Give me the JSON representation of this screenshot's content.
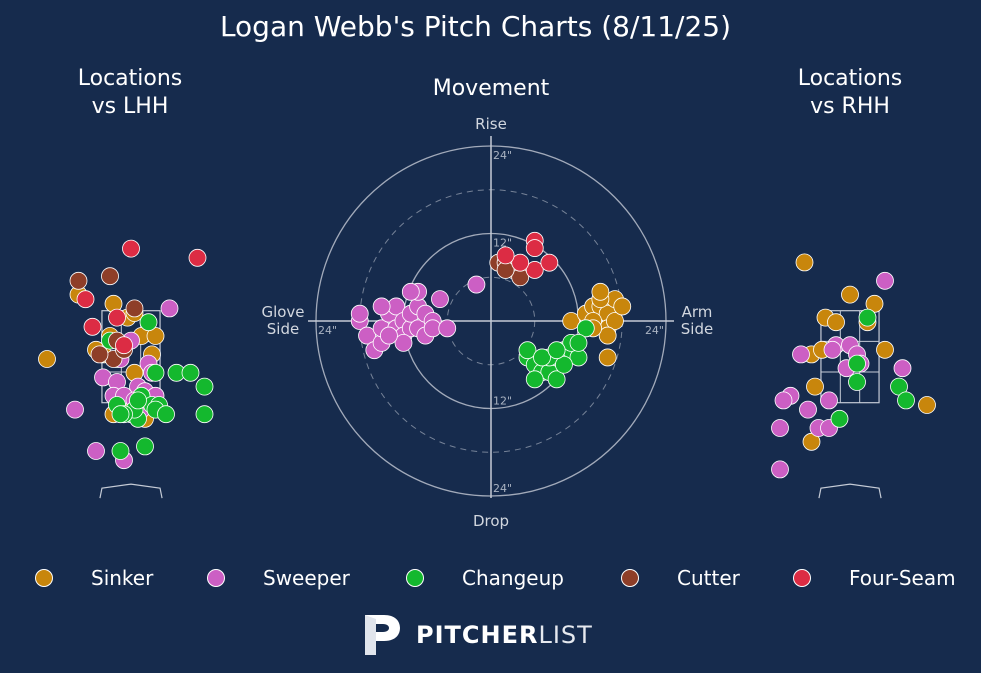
{
  "title": "Logan Webb's Pitch Charts (8/11/25)",
  "colors": {
    "background": "#162b4d",
    "Sinker": "#c8860c",
    "Sweeper": "#cc5fc4",
    "Changeup": "#14b82e",
    "Cutter": "#8e3e28",
    "Four-Seam": "#dc2c44",
    "grid": "#c5cbd6"
  },
  "legend": [
    {
      "name": "Sinker",
      "color": "#c8860c"
    },
    {
      "name": "Sweeper",
      "color": "#cc5fc4"
    },
    {
      "name": "Changeup",
      "color": "#14b82e"
    },
    {
      "name": "Cutter",
      "color": "#8e3e28"
    },
    {
      "name": "Four-Seam",
      "color": "#dc2c44"
    }
  ],
  "logo": {
    "bold": "PITCHER",
    "light": "LIST"
  },
  "chart_data": [
    {
      "type": "scatter",
      "title": "Locations\nvs LHH",
      "title_lines": [
        "Locations",
        "vs LHH"
      ],
      "xlim": [
        -2.3,
        2.3
      ],
      "ylim": [
        -0.5,
        5.3
      ],
      "series": [
        {
          "name": "Sinker",
          "points": [
            [
              -1.5,
              3.9
            ],
            [
              -0.5,
              3.7
            ],
            [
              -0.1,
              3.4
            ],
            [
              0.1,
              3.5
            ],
            [
              -0.6,
              3.0
            ],
            [
              0.3,
              3.0
            ],
            [
              0.7,
              3.0
            ],
            [
              -1.0,
              2.7
            ],
            [
              -0.8,
              2.6
            ],
            [
              -0.4,
              2.5
            ],
            [
              0.1,
              2.2
            ],
            [
              0.6,
              2.6
            ],
            [
              -0.2,
              1.6
            ],
            [
              -0.5,
              1.3
            ],
            [
              0.4,
              1.2
            ],
            [
              -2.4,
              2.5
            ]
          ]
        },
        {
          "name": "Sweeper",
          "points": [
            [
              1.1,
              3.6
            ],
            [
              0.0,
              2.9
            ],
            [
              -0.3,
              2.5
            ],
            [
              0.5,
              2.4
            ],
            [
              -0.8,
              2.1
            ],
            [
              -0.4,
              2.0
            ],
            [
              0.2,
              1.9
            ],
            [
              0.6,
              2.2
            ],
            [
              -0.5,
              1.7
            ],
            [
              -0.2,
              1.7
            ],
            [
              0.1,
              1.6
            ],
            [
              0.4,
              1.8
            ],
            [
              0.7,
              1.7
            ],
            [
              0.3,
              1.4
            ],
            [
              -1.6,
              1.4
            ],
            [
              -1.0,
              0.5
            ],
            [
              -0.2,
              0.3
            ]
          ]
        },
        {
          "name": "Changeup",
          "points": [
            [
              -0.6,
              2.9
            ],
            [
              0.5,
              3.3
            ],
            [
              0.7,
              2.2
            ],
            [
              1.3,
              2.2
            ],
            [
              1.7,
              2.2
            ],
            [
              2.1,
              1.9
            ],
            [
              0.3,
              1.7
            ],
            [
              0.6,
              1.5
            ],
            [
              0.8,
              1.5
            ],
            [
              -0.4,
              1.5
            ],
            [
              0.0,
              1.3
            ],
            [
              0.2,
              1.2
            ],
            [
              0.1,
              1.4
            ],
            [
              0.2,
              1.6
            ],
            [
              0.7,
              1.4
            ],
            [
              1.0,
              1.3
            ],
            [
              -0.2,
              1.3
            ],
            [
              -0.3,
              1.3
            ],
            [
              2.1,
              1.3
            ],
            [
              0.4,
              0.6
            ],
            [
              -0.3,
              0.5
            ]
          ]
        },
        {
          "name": "Cutter",
          "points": [
            [
              -1.5,
              4.2
            ],
            [
              -0.6,
              4.3
            ],
            [
              0.1,
              3.6
            ],
            [
              -0.4,
              2.9
            ],
            [
              -0.5,
              2.5
            ],
            [
              -0.9,
              2.6
            ],
            [
              -0.2,
              2.7
            ]
          ]
        },
        {
          "name": "Four-Seam",
          "points": [
            [
              0.0,
              4.9
            ],
            [
              1.9,
              4.7
            ],
            [
              -1.3,
              3.8
            ],
            [
              -0.4,
              3.4
            ],
            [
              -1.1,
              3.2
            ],
            [
              -0.2,
              2.8
            ]
          ]
        }
      ]
    },
    {
      "type": "scatter",
      "title": "Movement",
      "xlabel_left": "Glove\nSide",
      "xlabel_left_lines": [
        "Glove",
        "Side"
      ],
      "xlabel_right": "Arm\nSide",
      "xlabel_right_lines": [
        "Arm",
        "Side"
      ],
      "ylabel_top": "Rise",
      "ylabel_bottom": "Drop",
      "ring_labels": [
        "12\"",
        "24\""
      ],
      "rings": [
        6,
        12,
        18,
        24
      ],
      "xlim": [
        -24,
        24
      ],
      "ylim": [
        -24,
        24
      ],
      "series": [
        {
          "name": "Sinker",
          "points": [
            [
              11,
              0
            ],
            [
              13,
              1
            ],
            [
              14,
              2
            ],
            [
              15,
              2
            ],
            [
              16,
              1
            ],
            [
              17,
              3
            ],
            [
              15,
              3
            ],
            [
              16,
              -1
            ],
            [
              14,
              0
            ],
            [
              13,
              -1
            ],
            [
              17,
              0
            ],
            [
              18,
              2
            ],
            [
              15,
              4
            ],
            [
              16,
              -2
            ],
            [
              14,
              -1
            ],
            [
              16,
              -5
            ]
          ]
        },
        {
          "name": "Sweeper",
          "points": [
            [
              -18,
              0
            ],
            [
              -18,
              1
            ],
            [
              -17,
              -2
            ],
            [
              -16,
              -4
            ],
            [
              -15,
              -3
            ],
            [
              -15,
              -1
            ],
            [
              -14,
              1
            ],
            [
              -13,
              2
            ],
            [
              -13,
              -1
            ],
            [
              -12,
              0
            ],
            [
              -12,
              -2
            ],
            [
              -11,
              -1
            ],
            [
              -11,
              1
            ],
            [
              -10,
              2
            ],
            [
              -10,
              4
            ],
            [
              -10,
              -1
            ],
            [
              -9,
              -2
            ],
            [
              -9,
              1
            ],
            [
              -8,
              0
            ],
            [
              -8,
              -1
            ],
            [
              -7,
              3
            ],
            [
              -6,
              -1
            ],
            [
              -12,
              -3
            ],
            [
              -11,
              4
            ],
            [
              -15,
              2
            ],
            [
              -14,
              -2
            ],
            [
              -2,
              5
            ]
          ]
        },
        {
          "name": "Changeup",
          "points": [
            [
              5,
              -5
            ],
            [
              6,
              -6
            ],
            [
              7,
              -7
            ],
            [
              8,
              -7
            ],
            [
              9,
              -5
            ],
            [
              10,
              -4
            ],
            [
              11,
              -4
            ],
            [
              12,
              -5
            ],
            [
              13,
              -1
            ],
            [
              8,
              -5
            ],
            [
              9,
              -8
            ],
            [
              6,
              -8
            ],
            [
              5,
              -4
            ],
            [
              7,
              -5
            ],
            [
              10,
              -6
            ],
            [
              11,
              -3
            ],
            [
              12,
              -3
            ],
            [
              9,
              -4
            ]
          ]
        },
        {
          "name": "Cutter",
          "points": [
            [
              1,
              8
            ],
            [
              2,
              8
            ],
            [
              3,
              7
            ],
            [
              4,
              7
            ],
            [
              4,
              6
            ],
            [
              2,
              7
            ]
          ]
        },
        {
          "name": "Four-Seam",
          "points": [
            [
              6,
              11
            ],
            [
              6,
              10
            ],
            [
              6,
              7
            ],
            [
              4,
              8
            ],
            [
              2,
              9
            ],
            [
              8,
              8
            ]
          ]
        }
      ]
    },
    {
      "type": "scatter",
      "title": "Locations\nvs RHH",
      "title_lines": [
        "Locations",
        "vs RHH"
      ],
      "xlim": [
        -2.3,
        2.3
      ],
      "ylim": [
        -0.5,
        5.3
      ],
      "series": [
        {
          "name": "Sinker",
          "points": [
            [
              -1.3,
              4.6
            ],
            [
              0.0,
              3.9
            ],
            [
              0.7,
              3.7
            ],
            [
              -0.7,
              3.4
            ],
            [
              -0.4,
              3.3
            ],
            [
              0.5,
              3.3
            ],
            [
              -1.1,
              2.6
            ],
            [
              -0.8,
              2.7
            ],
            [
              1.0,
              2.7
            ],
            [
              -1.0,
              1.9
            ],
            [
              -1.1,
              0.7
            ],
            [
              2.2,
              1.5
            ]
          ]
        },
        {
          "name": "Sweeper",
          "points": [
            [
              1.0,
              4.2
            ],
            [
              -0.4,
              2.8
            ],
            [
              -0.5,
              2.7
            ],
            [
              0.0,
              2.8
            ],
            [
              0.2,
              2.6
            ],
            [
              -0.1,
              2.3
            ],
            [
              0.3,
              2.4
            ],
            [
              -0.6,
              1.6
            ],
            [
              -1.4,
              2.6
            ],
            [
              -1.7,
              1.7
            ],
            [
              -1.9,
              1.6
            ],
            [
              -1.2,
              1.4
            ],
            [
              -0.9,
              1.0
            ],
            [
              -0.6,
              1.0
            ],
            [
              1.5,
              2.3
            ],
            [
              -2.0,
              1.0
            ],
            [
              -2.0,
              0.1
            ]
          ]
        },
        {
          "name": "Changeup",
          "points": [
            [
              0.5,
              3.4
            ],
            [
              0.2,
              2.4
            ],
            [
              0.2,
              2.0
            ],
            [
              -0.3,
              1.2
            ],
            [
              1.4,
              1.9
            ],
            [
              1.6,
              1.6
            ]
          ]
        },
        {
          "name": "Cutter",
          "points": []
        },
        {
          "name": "Four-Seam",
          "points": []
        }
      ]
    }
  ]
}
